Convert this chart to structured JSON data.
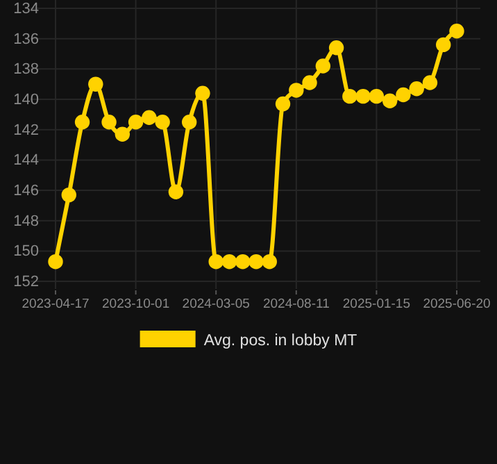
{
  "chart_data": {
    "type": "line",
    "categories": [
      "2023-04-17",
      null,
      null,
      null,
      null,
      null,
      "2023-10-01",
      null,
      null,
      null,
      null,
      null,
      "2024-03-05",
      null,
      null,
      null,
      null,
      null,
      "2024-08-11",
      null,
      null,
      null,
      null,
      null,
      "2025-01-15",
      null,
      null,
      null,
      null,
      null,
      "2025-06-20"
    ],
    "series": [
      {
        "name": "Avg. pos. in lobby MT",
        "color": "#ffd200",
        "values": [
          150.7,
          146.3,
          141.5,
          139.0,
          141.5,
          142.3,
          141.5,
          141.2,
          141.5,
          146.1,
          141.5,
          139.6,
          150.7,
          150.7,
          150.7,
          150.7,
          150.7,
          140.3,
          139.4,
          138.9,
          137.8,
          136.6,
          139.8,
          139.8,
          139.8,
          140.1,
          139.7,
          139.3,
          138.9,
          136.4,
          135.5
        ]
      }
    ],
    "ylim": [
      152.5,
      134
    ],
    "yticks": [
      134,
      136,
      138,
      140,
      142,
      144,
      146,
      148,
      150,
      152
    ],
    "grid": true,
    "legend": "bottom",
    "marker": "circle",
    "line_style": "solid"
  }
}
